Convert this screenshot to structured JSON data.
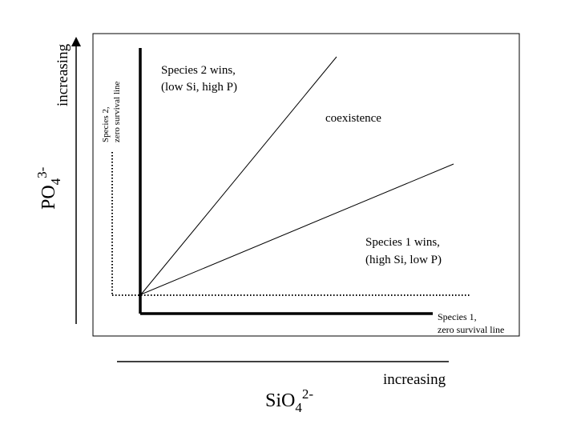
{
  "x_axis": {
    "direction_label": "increasing",
    "species_formula": "SiO",
    "species_subscript": "4",
    "species_charge": "2-"
  },
  "y_axis": {
    "direction_label": "increasing",
    "species_formula": "PO",
    "species_subscript": "4",
    "species_charge": "3-"
  },
  "regions": {
    "species2_wins": [
      "Species 2 wins,",
      "(low Si, high P)"
    ],
    "coexistence": "coexistence",
    "species1_wins": [
      "Species 1 wins,",
      "(high Si, low P)"
    ]
  },
  "survival_lines": {
    "species1": [
      "Species 1,",
      "zero survival line"
    ],
    "species2": [
      "Species 2,",
      "zero survival line"
    ]
  }
}
